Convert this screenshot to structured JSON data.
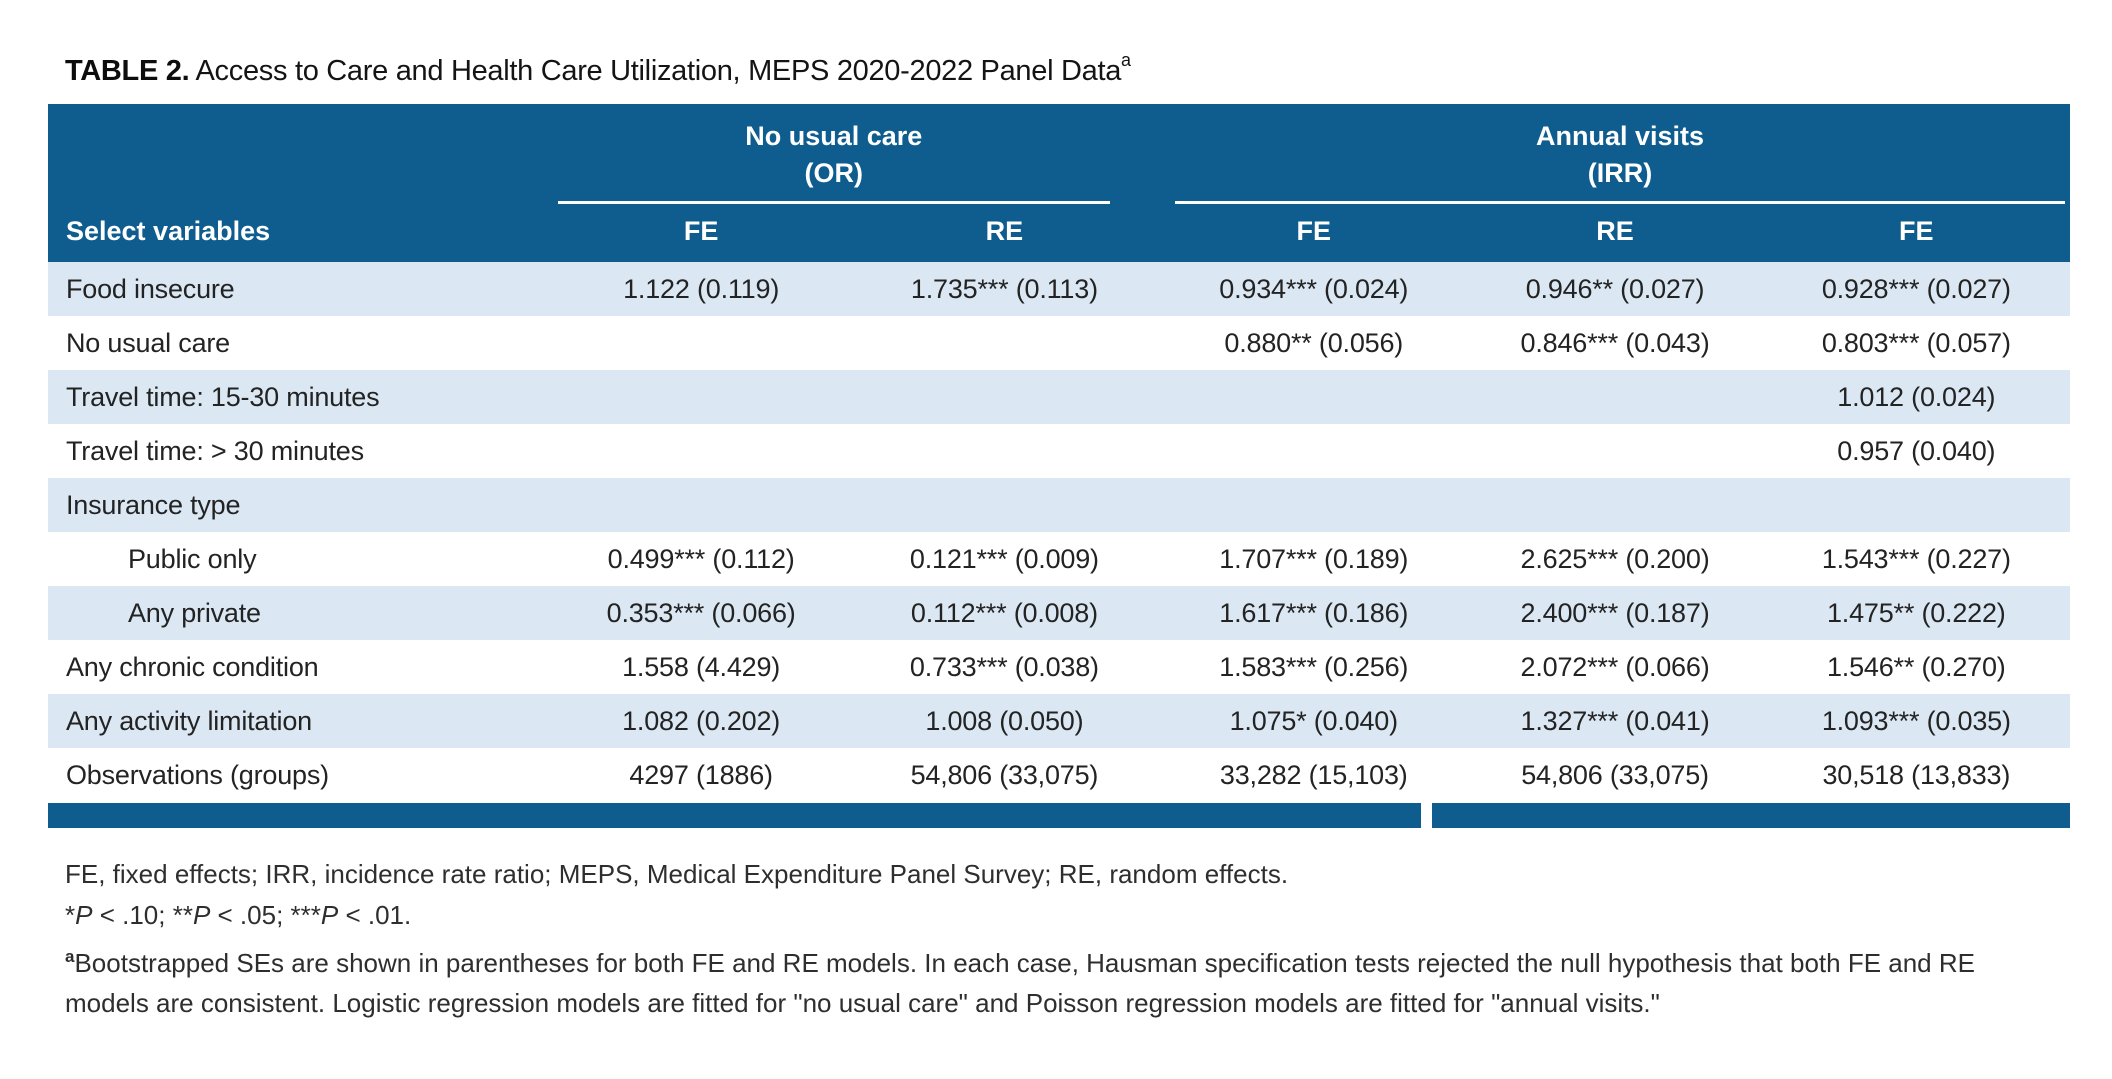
{
  "colors": {
    "header_blue": "#0e5d8e",
    "row_stripe": "#dbe8f4"
  },
  "title": {
    "label": "TABLE 2.",
    "text": " Access to Care and Health Care Utilization, MEPS 2020-2022 Panel Data",
    "superscript": "a"
  },
  "table": {
    "group_headers": [
      {
        "title": "No usual care",
        "sub": "(OR)"
      },
      {
        "title": "Annual visits",
        "sub": "(IRR)"
      }
    ],
    "header": {
      "label": "Select variables",
      "cols": [
        "FE",
        "RE",
        "FE",
        "RE",
        "FE"
      ]
    },
    "rows": [
      {
        "label": "Food insecure",
        "values": [
          "1.122 (0.119)",
          "1.735*** (0.113)",
          "0.934*** (0.024)",
          "0.946** (0.027)",
          "0.928*** (0.027)"
        ]
      },
      {
        "label": "No usual care",
        "values": [
          "",
          "",
          "0.880** (0.056)",
          "0.846*** (0.043)",
          "0.803*** (0.057)"
        ]
      },
      {
        "label": "Travel time: 15-30 minutes",
        "values": [
          "",
          "",
          "",
          "",
          "1.012 (0.024)"
        ]
      },
      {
        "label": "Travel time: > 30 minutes",
        "values": [
          "",
          "",
          "",
          "",
          "0.957 (0.040)"
        ]
      },
      {
        "label": "Insurance type",
        "values": [
          "",
          "",
          "",
          "",
          ""
        ]
      },
      {
        "label": "Public only",
        "values": [
          "0.499*** (0.112)",
          "0.121*** (0.009)",
          "1.707*** (0.189)",
          "2.625*** (0.200)",
          "1.543*** (0.227)"
        ]
      },
      {
        "label": "Any private",
        "values": [
          "0.353*** (0.066)",
          "0.112*** (0.008)",
          "1.617*** (0.186)",
          "2.400*** (0.187)",
          "1.475** (0.222)"
        ]
      },
      {
        "label": "Any chronic condition",
        "values": [
          "1.558 (4.429)",
          "0.733*** (0.038)",
          "1.583*** (0.256)",
          "2.072*** (0.066)",
          "1.546** (0.270)"
        ]
      },
      {
        "label": "Any activity limitation",
        "values": [
          "1.082 (0.202)",
          "1.008 (0.050)",
          "1.075* (0.040)",
          "1.327*** (0.041)",
          "1.093*** (0.035)"
        ]
      },
      {
        "label": "Observations (groups)",
        "values": [
          "4297 (1886)",
          "54,806 (33,075)",
          "33,282 (15,103)",
          "54,806 (33,075)",
          "30,518 (13,833)"
        ]
      }
    ]
  },
  "footnotes": {
    "abbrev": "FE, fixed effects; IRR, incidence rate ratio; MEPS, Medical Expenditure Panel Survey; RE, random effects.",
    "sig": {
      "s1": "*",
      "p1": "P",
      "r1": " < .10; ",
      "s2": "**",
      "p2": "P",
      "r2": " < .05; ",
      "s3": "***",
      "p3": "P",
      "r3": " < .01."
    },
    "note_a": {
      "marker": "a",
      "text": "Bootstrapped SEs are shown in parentheses for both FE and RE models. In each case, Hausman specification tests rejected the null hypothesis that both FE and RE models are consistent. Logistic regression models are fitted for \"no usual care\" and Poisson regression models are fitted for \"annual visits.\""
    }
  }
}
